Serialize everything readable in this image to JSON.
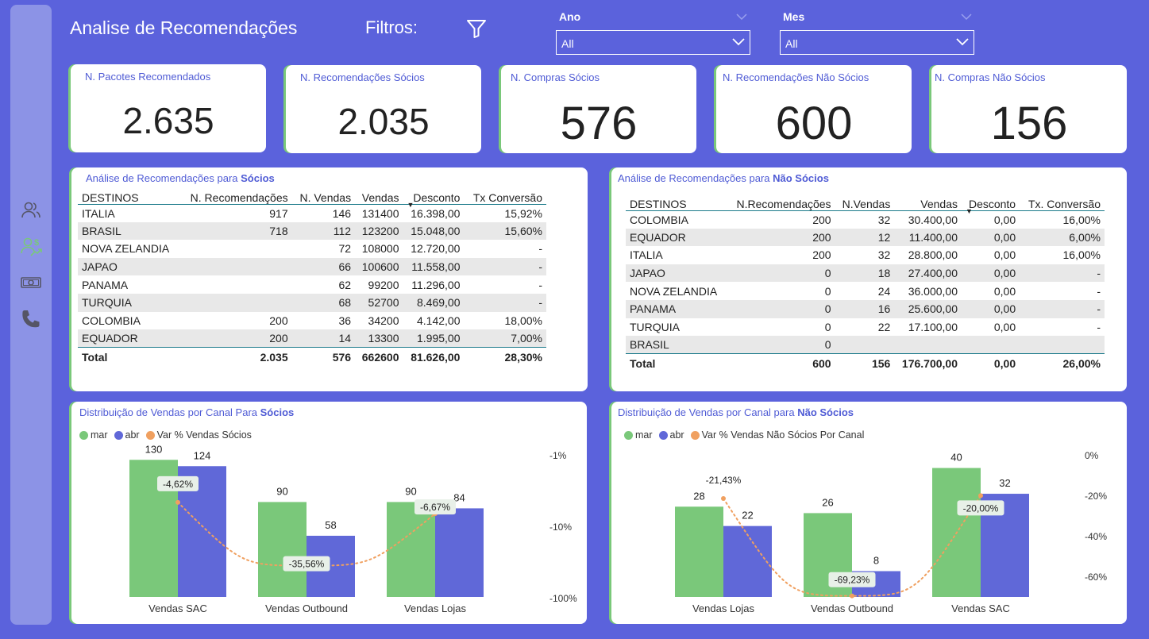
{
  "header": {
    "title": "Analise de Recomendações",
    "filters_label": "Filtros:"
  },
  "slicers": {
    "ano": {
      "title": "Ano",
      "value": "All"
    },
    "mes": {
      "title": "Mes",
      "value": "All"
    }
  },
  "sidebar": {
    "items": [
      "users-icon",
      "users-money-icon",
      "money-icon",
      "phone-icon"
    ],
    "active_color": "#7ac87a"
  },
  "kpis": [
    {
      "label": "N. Pacotes Recomendados",
      "value": "2.635"
    },
    {
      "label": "N. Recomendações Sócios",
      "value": "2.035"
    },
    {
      "label": "N. Compras Sócios",
      "value": "576"
    },
    {
      "label": "N. Recomendações Não Sócios",
      "value": "600"
    },
    {
      "label": "N. Compras Não Sócios",
      "value": "156"
    }
  ],
  "table_socios": {
    "title_prefix": "Análise de Recomendações para ",
    "title_bold": "Sócios",
    "columns": [
      "DESTINOS",
      "N. Recomendações",
      "N. Vendas",
      "Vendas",
      "Desconto",
      "Tx Conversão"
    ],
    "rows": [
      [
        "ITALIA",
        "917",
        "146",
        "131400",
        "16.398,00",
        "15,92%"
      ],
      [
        "BRASIL",
        "718",
        "112",
        "123200",
        "15.048,00",
        "15,60%"
      ],
      [
        "NOVA ZELANDIA",
        "",
        "72",
        "108000",
        "12.720,00",
        "-"
      ],
      [
        "JAPAO",
        "",
        "66",
        "100600",
        "11.558,00",
        "-"
      ],
      [
        "PANAMA",
        "",
        "62",
        "99200",
        "11.296,00",
        "-"
      ],
      [
        "TURQUIA",
        "",
        "68",
        "52700",
        "8.469,00",
        "-"
      ],
      [
        "COLOMBIA",
        "200",
        "36",
        "34200",
        "4.142,00",
        "18,00%"
      ],
      [
        "EQUADOR",
        "200",
        "14",
        "13300",
        "1.995,00",
        "7,00%"
      ]
    ],
    "total": [
      "Total",
      "2.035",
      "576",
      "662600",
      "81.626,00",
      "28,30%"
    ]
  },
  "table_nao_socios": {
    "title_prefix": "Análise de Recomendações para ",
    "title_bold": "Não Sócios",
    "columns": [
      "DESTINOS",
      "N.Recomendações",
      "N.Vendas",
      "Vendas",
      "Desconto",
      "Tx. Conversão"
    ],
    "rows": [
      [
        "COLOMBIA",
        "200",
        "32",
        "30.400,00",
        "0,00",
        "16,00%"
      ],
      [
        "EQUADOR",
        "200",
        "12",
        "11.400,00",
        "0,00",
        "6,00%"
      ],
      [
        "ITALIA",
        "200",
        "32",
        "28.800,00",
        "0,00",
        "16,00%"
      ],
      [
        "JAPAO",
        "0",
        "18",
        "27.400,00",
        "0,00",
        "-"
      ],
      [
        "NOVA ZELANDIA",
        "0",
        "24",
        "36.000,00",
        "0,00",
        "-"
      ],
      [
        "PANAMA",
        "0",
        "16",
        "25.600,00",
        "0,00",
        "-"
      ],
      [
        "TURQUIA",
        "0",
        "22",
        "17.100,00",
        "0,00",
        "-"
      ],
      [
        "BRASIL",
        "0",
        "",
        "",
        "",
        ""
      ]
    ],
    "total": [
      "Total",
      "600",
      "156",
      "176.700,00",
      "0,00",
      "26,00%"
    ]
  },
  "chart_data": [
    {
      "type": "bar",
      "title_prefix": "Distribuição de Vendas por Canal Para ",
      "title_bold": "Sócios",
      "categories": [
        "Vendas SAC",
        "Vendas Outbound",
        "Vendas Lojas"
      ],
      "series": [
        {
          "name": "mar",
          "color": "#7ac87a",
          "values": [
            130,
            90,
            90
          ]
        },
        {
          "name": "abr",
          "color": "#6068d8",
          "values": [
            124,
            58,
            84
          ]
        }
      ],
      "line_series": {
        "name": "Var % Vendas Sócios",
        "color": "#f0a060",
        "values": [
          -4.62,
          -35.56,
          -6.67
        ],
        "labels": [
          "-4,62%",
          "-35,56%",
          "-6,67%"
        ]
      },
      "y2_ticks": [
        "-1%",
        "-10%",
        "-100%"
      ],
      "y2_scale": "log"
    },
    {
      "type": "bar",
      "title_prefix": "Distribuição de Vendas por Canal para ",
      "title_bold": "Não Sócios",
      "categories": [
        "Vendas Lojas",
        "Vendas Outbound",
        "Vendas SAC"
      ],
      "series": [
        {
          "name": "mar",
          "color": "#7ac87a",
          "values": [
            28,
            26,
            40
          ]
        },
        {
          "name": "abr",
          "color": "#6068d8",
          "values": [
            22,
            8,
            32
          ]
        }
      ],
      "line_series": {
        "name": "Var % Vendas Não Sócios Por Canal",
        "color": "#f0a060",
        "values": [
          -21.43,
          -69.23,
          -20.0
        ],
        "labels": [
          "-21,43%",
          "-69,23%",
          "-20,00%"
        ]
      },
      "y2_ticks": [
        "0%",
        "-20%",
        "-40%",
        "-60%"
      ],
      "y2_range": [
        -70,
        0
      ]
    }
  ]
}
